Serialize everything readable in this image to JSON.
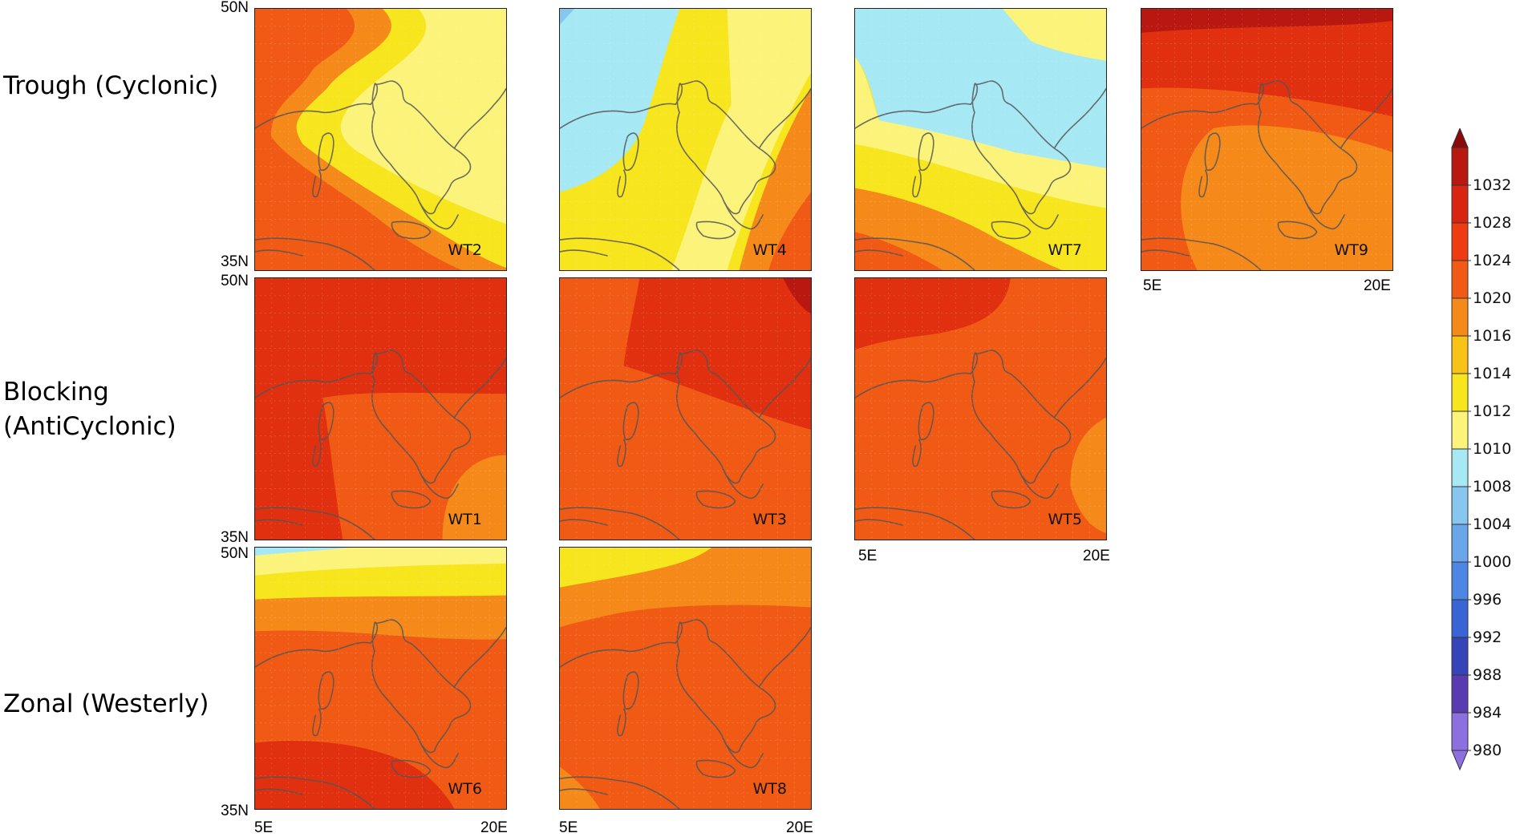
{
  "rows": [
    {
      "label": "Trough (Cyclonic)"
    },
    {
      "label_line1": "Blocking",
      "label_line2": "(AntiCyclonic)"
    },
    {
      "label": "Zonal (Westerly)"
    }
  ],
  "axes": {
    "lat_top": "50N",
    "lat_bottom": "35N",
    "lon_left": "5E",
    "lon_right": "20E"
  },
  "panels": [
    {
      "id": "WT2",
      "pattern": "trough-a"
    },
    {
      "id": "WT4",
      "pattern": "trough-b"
    },
    {
      "id": "WT7",
      "pattern": "trough-c"
    },
    {
      "id": "WT9",
      "pattern": "trough-d"
    },
    {
      "id": "WT1",
      "pattern": "block-a"
    },
    {
      "id": "WT3",
      "pattern": "block-b"
    },
    {
      "id": "WT5",
      "pattern": "block-c"
    },
    {
      "id": "WT6",
      "pattern": "zonal-a"
    },
    {
      "id": "WT8",
      "pattern": "zonal-b"
    }
  ],
  "colorbar": {
    "ticks": [
      "1032",
      "1028",
      "1024",
      "1020",
      "1016",
      "1014",
      "1012",
      "1010",
      "1008",
      "1004",
      "1000",
      "996",
      "992",
      "988",
      "984",
      "980"
    ],
    "colors": [
      "#8b0a0a",
      "#b81810",
      "#d9250f",
      "#ef3b12",
      "#f05a14",
      "#f5891a",
      "#f9c216",
      "#f7e51d",
      "#fbf37a",
      "#a6e8f3",
      "#87c6ee",
      "#6aa6ea",
      "#4d86e3",
      "#3a64d6",
      "#3544b8",
      "#5a3ab0",
      "#8d6fe0"
    ],
    "colors_note": "unused"
  }
}
